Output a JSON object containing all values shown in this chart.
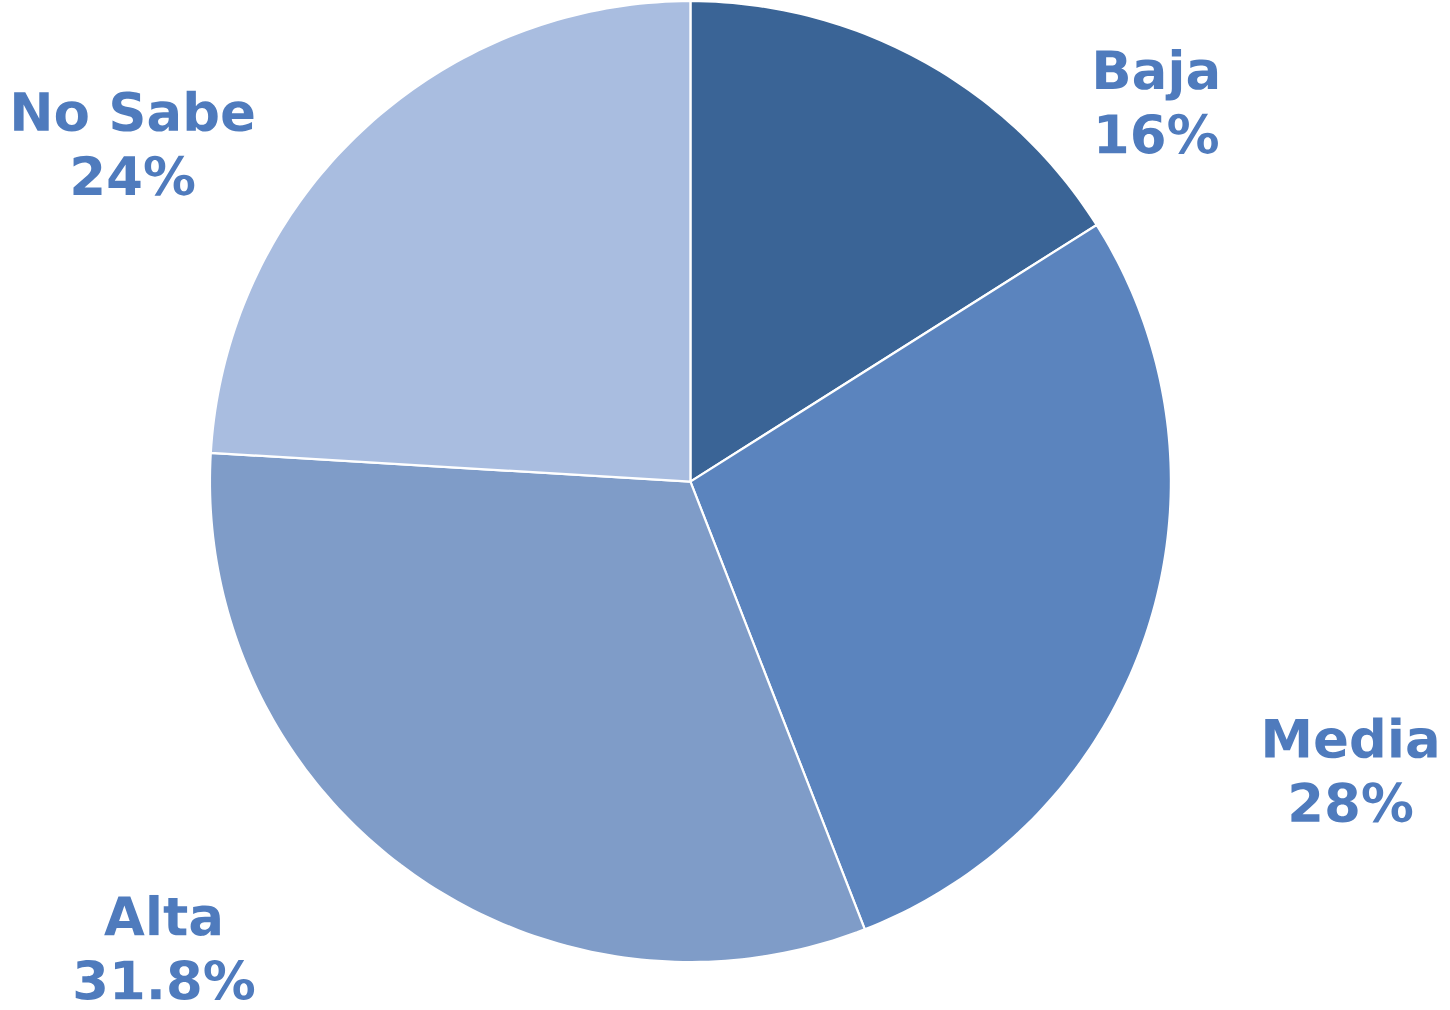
{
  "chart_data": {
    "type": "pie",
    "categories": [
      "Baja",
      "Media",
      "Alta",
      "No Sabe"
    ],
    "values": [
      16,
      28,
      31.8,
      24
    ],
    "colors": [
      "#3a6496",
      "#5b84be",
      "#7f9cc8",
      "#a9bde0"
    ],
    "value_labels": [
      "16%",
      "28%",
      "31.8%",
      "24%"
    ]
  }
}
